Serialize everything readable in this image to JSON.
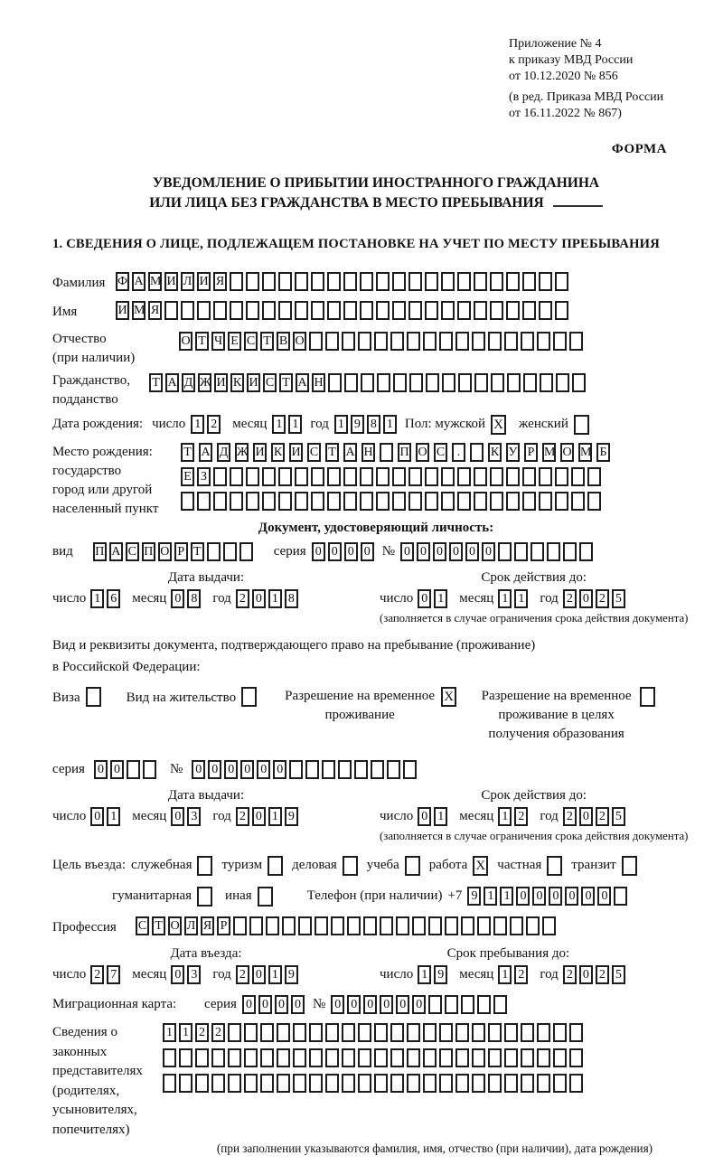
{
  "header": {
    "ref_lines": [
      "Приложение № 4",
      "к приказу МВД России",
      "от 10.12.2020 № 856",
      "(в ред. Приказа МВД России",
      "от 16.11.2022 № 867)"
    ],
    "forma": "ФОРМА"
  },
  "title": {
    "line1": "УВЕДОМЛЕНИЕ О ПРИБЫТИИ ИНОСТРАННОГО ГРАЖДАНИНА",
    "line2": "ИЛИ ЛИЦА БЕЗ ГРАЖДАНСТВА В МЕСТО ПРЕБЫВАНИЯ"
  },
  "section1": {
    "heading": "1. СВЕДЕНИЯ О ЛИЦЕ, ПОДЛЕЖАЩЕМ ПОСТАНОВКЕ НА УЧЕТ ПО МЕСТУ ПРЕБЫВАНИЯ"
  },
  "labels": {
    "surname": "Фамилия",
    "given_name": "Имя",
    "patronymic": "Отчество",
    "patronymic_note": "(при наличии)",
    "citizenship_1": "Гражданство,",
    "citizenship_2": "подданство",
    "birth_date": "Дата рождения:",
    "day": "число",
    "month": "месяц",
    "year": "год",
    "sex_male": "Пол: мужской",
    "sex_female": "женский",
    "birthplace_1": "Место рождения:",
    "birthplace_2": "государство",
    "birthplace_3": "город или другой",
    "birthplace_4": "населенный пункт",
    "identity_doc": "Документ, удостоверяющий личность:",
    "vid": "вид",
    "series": "серия",
    "number": "№",
    "issue_date": "Дата выдачи:",
    "valid_until": "Срок действия до:",
    "restriction_note": "(заполняется в случае ограничения срока действия документа)",
    "right_doc_1": "Вид и реквизиты документа, подтверждающего право на пребывание (проживание)",
    "right_doc_2": "в Российской Федерации:",
    "visa": "Виза",
    "residence_permit": "Вид на жительство",
    "temp_permit": "Разрешение на временное проживание",
    "temp_permit_edu": "Разрешение на временное проживание в целях получения образования",
    "purpose": "Цель въезда:",
    "official": "служебная",
    "tourism": "туризм",
    "business": "деловая",
    "study": "учеба",
    "work": "работа",
    "private": "частная",
    "transit": "транзит",
    "humanitarian": "гуманитарная",
    "other": "иная",
    "phone": "Телефон (при наличии)",
    "plus7": "+7",
    "profession": "Профессия",
    "entry_date": "Дата въезда:",
    "stay_until": "Срок пребывания до:",
    "migration_card": "Миграционная карта:",
    "repr_lines": [
      "Сведения о",
      "законных",
      "представителях",
      "(родителях,",
      "усыновителях,",
      "попечителях)"
    ],
    "repr_note": "(при заполнении указываются фамилия, имя, отчество (при наличии), дата рождения)"
  },
  "fields": {
    "surname": {
      "total": 28,
      "filled": [
        "Ф",
        "А",
        "М",
        "И",
        "Л",
        "И",
        "Я"
      ]
    },
    "given_name": {
      "total": 28,
      "filled": [
        "И",
        "М",
        "Я"
      ]
    },
    "patronymic": {
      "total": 25,
      "filled": [
        "О",
        "Т",
        "Ч",
        "Е",
        "С",
        "Т",
        "В",
        "О"
      ]
    },
    "citizenship": {
      "total": 27,
      "filled": [
        "Т",
        "А",
        "Д",
        "Ж",
        "И",
        "К",
        "И",
        "С",
        "Т",
        "А",
        "Н"
      ]
    },
    "birth_day": [
      "1",
      "2"
    ],
    "birth_month": [
      "1",
      "1"
    ],
    "birth_year": [
      "1",
      "9",
      "8",
      "1"
    ],
    "sex_male_chk": "X",
    "sex_female_chk": "",
    "birthplace_r1": [
      "Т",
      "А",
      "Д",
      "Ж",
      "И",
      "К",
      "И",
      "С",
      "Т",
      "А",
      "Н",
      "",
      "П",
      "О",
      "С",
      ".",
      "",
      "К",
      "У",
      "Р",
      "М",
      "О",
      "М",
      "Б"
    ],
    "birthplace_r2": {
      "total": 26,
      "filled": [
        "Е",
        "З"
      ]
    },
    "birthplace_r3": {
      "total": 26
    },
    "doc_type": {
      "total": 10,
      "filled": [
        "П",
        "А",
        "С",
        "П",
        "О",
        "Р",
        "Т"
      ]
    },
    "doc_series": [
      "0",
      "0",
      "0",
      "0"
    ],
    "doc_number": {
      "total": 12,
      "filled": [
        "0",
        "0",
        "0",
        "0",
        "0",
        "0"
      ]
    },
    "doc_issue_day": [
      "1",
      "6"
    ],
    "doc_issue_month": [
      "0",
      "8"
    ],
    "doc_issue_year": [
      "2",
      "0",
      "1",
      "8"
    ],
    "doc_valid_day": [
      "0",
      "1"
    ],
    "doc_valid_month": [
      "1",
      "1"
    ],
    "doc_valid_year": [
      "2",
      "0",
      "2",
      "5"
    ],
    "visa_chk": "",
    "residence_permit_chk": "",
    "temp_permit_chk": "X",
    "temp_permit_edu_chk": "",
    "permit_series": {
      "total": 4,
      "filled": [
        "0",
        "0"
      ]
    },
    "permit_number": {
      "total": 14,
      "filled": [
        "0",
        "0",
        "0",
        "0",
        "0",
        "0"
      ]
    },
    "permit_issue_day": [
      "0",
      "1"
    ],
    "permit_issue_month": [
      "0",
      "3"
    ],
    "permit_issue_year": [
      "2",
      "0",
      "1",
      "9"
    ],
    "permit_valid_day": [
      "0",
      "1"
    ],
    "permit_valid_month": [
      "1",
      "2"
    ],
    "permit_valid_year": [
      "2",
      "0",
      "2",
      "5"
    ],
    "official_chk": "",
    "tourism_chk": "",
    "business_chk": "",
    "study_chk": "",
    "work_chk": "X",
    "private_chk": "",
    "transit_chk": "",
    "humanitarian_chk": "",
    "other_chk": "",
    "phone": {
      "total": 10,
      "filled": [
        "9",
        "1",
        "1",
        "0",
        "0",
        "0",
        "0",
        "0",
        "0"
      ]
    },
    "profession": {
      "total": 26,
      "filled": [
        "С",
        "Т",
        "О",
        "Л",
        "Я",
        "Р"
      ]
    },
    "entry_day": [
      "2",
      "7"
    ],
    "entry_month": [
      "0",
      "3"
    ],
    "entry_year": [
      "2",
      "0",
      "1",
      "9"
    ],
    "stay_day": [
      "1",
      "9"
    ],
    "stay_month": [
      "1",
      "2"
    ],
    "stay_year": [
      "2",
      "0",
      "2",
      "5"
    ],
    "mig_series": [
      "0",
      "0",
      "0",
      "0"
    ],
    "mig_number": {
      "total": 11,
      "filled": [
        "0",
        "0",
        "0",
        "0",
        "0",
        "0"
      ]
    },
    "repr_r1": {
      "total": 26,
      "filled": [
        "1",
        "1",
        "2",
        "2"
      ]
    },
    "repr_r2": {
      "total": 26
    },
    "repr_r3": {
      "total": 26
    }
  }
}
